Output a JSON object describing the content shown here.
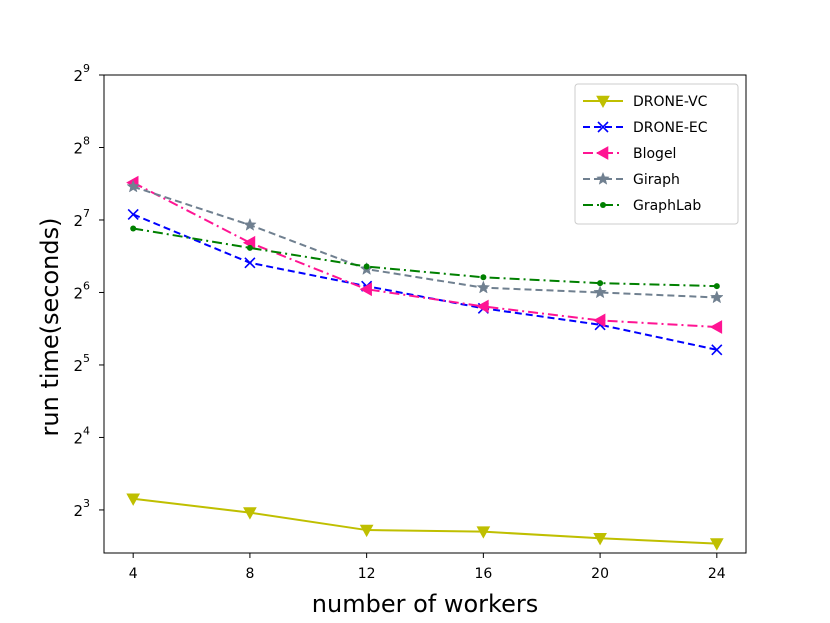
{
  "chart_data": {
    "type": "line",
    "xlabel": "number of workers",
    "ylabel": "run time(seconds)",
    "x": [
      4,
      8,
      12,
      16,
      20,
      24
    ],
    "x_ticks": [
      "4",
      "8",
      "12",
      "16",
      "20",
      "24"
    ],
    "y_scale": "log2",
    "y_tick_base": "2",
    "y_tick_exponents": [
      "3",
      "4",
      "5",
      "6",
      "7",
      "8",
      "9"
    ],
    "y_ticks": [
      8,
      16,
      32,
      64,
      128,
      256,
      512
    ],
    "xlim": [
      3,
      25
    ],
    "ylim": [
      5.3,
      512
    ],
    "grid": false,
    "legend_position": "top-right",
    "series": [
      {
        "name": "DRONE-VC",
        "color": "#bfbf00",
        "line": "solid",
        "marker": "triangle-down",
        "values": [
          8.9,
          7.8,
          6.6,
          6.5,
          6.1,
          5.8
        ]
      },
      {
        "name": "DRONE-EC",
        "color": "#0000ff",
        "line": "dashed",
        "marker": "x",
        "values": [
          135,
          85,
          68,
          55,
          47,
          37
        ]
      },
      {
        "name": "Blogel",
        "color": "#ff1493",
        "line": "dashdot",
        "marker": "triangle-left",
        "values": [
          183,
          103,
          66,
          56,
          49,
          46
        ]
      },
      {
        "name": "Giraph",
        "color": "#708090",
        "line": "dashed",
        "marker": "star",
        "values": [
          176,
          122,
          80,
          67,
          64,
          61
        ]
      },
      {
        "name": "GraphLab",
        "color": "#008000",
        "line": "dashdot",
        "marker": "dot",
        "values": [
          118,
          98,
          82,
          74,
          70,
          68
        ]
      }
    ]
  }
}
